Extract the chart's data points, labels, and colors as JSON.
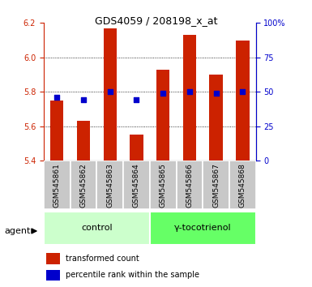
{
  "title": "GDS4059 / 208198_x_at",
  "samples": [
    "GSM545861",
    "GSM545862",
    "GSM545863",
    "GSM545864",
    "GSM545865",
    "GSM545866",
    "GSM545867",
    "GSM545868"
  ],
  "red_values": [
    5.75,
    5.63,
    6.17,
    5.55,
    5.93,
    6.13,
    5.9,
    6.1
  ],
  "blue_values": [
    46,
    44,
    50,
    44,
    49,
    50,
    49,
    50
  ],
  "ylim_left": [
    5.4,
    6.2
  ],
  "ylim_right": [
    0,
    100
  ],
  "yticks_left": [
    5.4,
    5.6,
    5.8,
    6.0,
    6.2
  ],
  "yticks_right": [
    0,
    25,
    50,
    75,
    100
  ],
  "ytick_labels_right": [
    "0",
    "25",
    "50",
    "75",
    "100%"
  ],
  "groups": [
    {
      "label": "control",
      "indices": [
        0,
        1,
        2,
        3
      ],
      "color": "#ccffcc"
    },
    {
      "label": "γ-tocotrienol",
      "indices": [
        4,
        5,
        6,
        7
      ],
      "color": "#66ff66"
    }
  ],
  "agent_label": "agent",
  "bar_color": "#cc2200",
  "dot_color": "#0000cc",
  "bar_bottom": 5.4,
  "background_color": "#ffffff",
  "plot_bg_color": "#ffffff",
  "sample_bg_color": "#c8c8c8",
  "grid_color": "#000000",
  "left_tick_color": "#cc2200",
  "right_tick_color": "#0000cc",
  "bar_width": 0.5,
  "dot_size": 18
}
